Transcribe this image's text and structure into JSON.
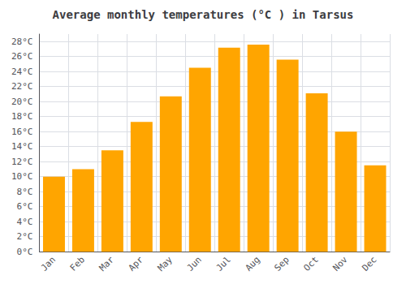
{
  "chart_data": {
    "type": "bar",
    "title": "Average monthly temperatures (°C ) in Tarsus",
    "categories": [
      "Jan",
      "Feb",
      "Mar",
      "Apr",
      "May",
      "Jun",
      "Jul",
      "Aug",
      "Sep",
      "Oct",
      "Nov",
      "Dec"
    ],
    "values": [
      10.0,
      11.0,
      13.5,
      17.3,
      20.7,
      24.5,
      27.2,
      27.6,
      25.6,
      21.1,
      16.0,
      11.5
    ],
    "color": "#FFA500",
    "ylim": [
      0,
      29
    ],
    "yticks": [
      {
        "value": 0,
        "label": "0°C"
      },
      {
        "value": 2,
        "label": "2°C"
      },
      {
        "value": 4,
        "label": "4°C"
      },
      {
        "value": 6,
        "label": "6°C"
      },
      {
        "value": 8,
        "label": "8°C"
      },
      {
        "value": 10,
        "label": "10°C"
      },
      {
        "value": 12,
        "label": "12°C"
      },
      {
        "value": 14,
        "label": "14°C"
      },
      {
        "value": 16,
        "label": "16°C"
      },
      {
        "value": 18,
        "label": "18°C"
      },
      {
        "value": 20,
        "label": "20°C"
      },
      {
        "value": 22,
        "label": "22°C"
      },
      {
        "value": 24,
        "label": "24°C"
      },
      {
        "value": 26,
        "label": "26°C"
      },
      {
        "value": 28,
        "label": "28°C"
      }
    ],
    "grid": true
  }
}
